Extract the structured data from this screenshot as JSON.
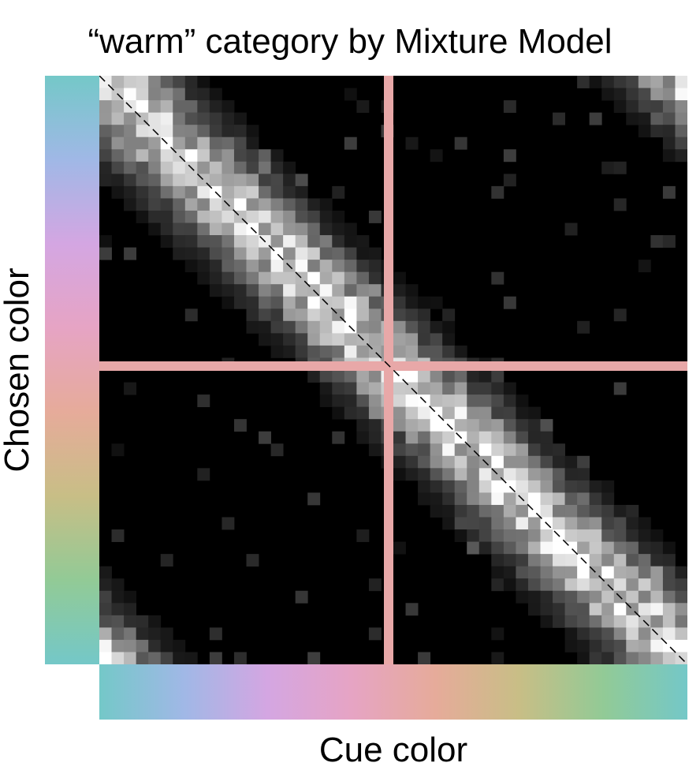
{
  "chart_data": {
    "type": "heatmap",
    "title": "“warm” category by Mixture Model",
    "xlabel": "Cue color",
    "ylabel": "Chosen color",
    "grid": false,
    "legend": "none",
    "n_bins": 48,
    "description_encoding": "cell brightness = response probability; rows top→bottom, columns left→right",
    "band": {
      "type": "diagonal",
      "direction": "top-left to bottom-right",
      "wraps_circularly": true,
      "peak_intensity": 1.0
    },
    "reference_line": {
      "style": "dashed",
      "color": "#000000",
      "from": [
        0,
        0
      ],
      "to": [
        48,
        48
      ]
    },
    "category_boundaries": {
      "x_bin": 24,
      "y_bin": 24,
      "color": "#e8a8a8"
    },
    "color_wheel_stops": [
      "#74c8c8",
      "#a0b8e6",
      "#d4a6e2",
      "#e6a4c4",
      "#e6ab9a",
      "#c8be86",
      "#92ca96",
      "#74c8c8"
    ],
    "colors": {
      "background": "#000000",
      "boundary": "#e8a8a8",
      "diagonal": "#000000"
    }
  }
}
